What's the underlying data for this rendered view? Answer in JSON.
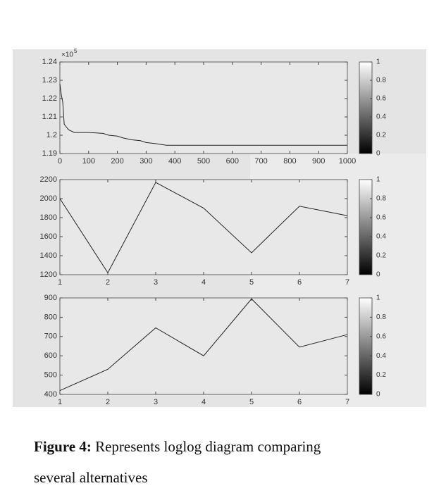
{
  "chart_data": [
    {
      "type": "line",
      "x": [
        0,
        5,
        10,
        15,
        20,
        30,
        50,
        100,
        150,
        170,
        200,
        220,
        250,
        280,
        300,
        330,
        370,
        400,
        500,
        600,
        700,
        800,
        900,
        1000
      ],
      "values": [
        122800,
        122200,
        121800,
        120600,
        120500,
        120300,
        120150,
        120150,
        120100,
        120000,
        119950,
        119850,
        119750,
        119700,
        119600,
        119550,
        119450,
        119450,
        119450,
        119450,
        119450,
        119450,
        119450,
        119450
      ],
      "xlim": [
        0,
        1000
      ],
      "ylim": [
        119000,
        124000
      ],
      "xticks": [
        0,
        100,
        200,
        300,
        400,
        500,
        600,
        700,
        800,
        900,
        1000
      ],
      "yticks": [
        {
          "value": 119000,
          "label": "1.19"
        },
        {
          "value": 120000,
          "label": "1.2"
        },
        {
          "value": 121000,
          "label": "1.21"
        },
        {
          "value": 122000,
          "label": "1.22"
        },
        {
          "value": 123000,
          "label": "1.23"
        },
        {
          "value": 124000,
          "label": "1.24"
        }
      ],
      "y_multiplier": {
        "base": "×10",
        "power": "5"
      },
      "color": "#222222",
      "colorbar": {
        "lim": [
          0,
          1
        ],
        "ticks": [
          0,
          0.2,
          0.4,
          0.6,
          0.8,
          1
        ]
      }
    },
    {
      "type": "line",
      "x": [
        1,
        2,
        3,
        4,
        5,
        6,
        7
      ],
      "values": [
        2000,
        1220,
        2170,
        1900,
        1430,
        1920,
        1820
      ],
      "xlim": [
        1,
        7
      ],
      "ylim": [
        1200,
        2200
      ],
      "xticks": [
        1,
        2,
        3,
        4,
        5,
        6,
        7
      ],
      "yticks": [
        1200,
        1400,
        1600,
        1800,
        2000,
        2200
      ],
      "color": "#222222",
      "colorbar": {
        "lim": [
          0,
          1
        ],
        "ticks": [
          0,
          0.2,
          0.4,
          0.6,
          0.8,
          1
        ]
      }
    },
    {
      "type": "line",
      "x": [
        1,
        2,
        3,
        4,
        5,
        6,
        7
      ],
      "values": [
        420,
        530,
        745,
        600,
        895,
        645,
        710
      ],
      "xlim": [
        1,
        7
      ],
      "ylim": [
        400,
        900
      ],
      "xticks": [
        1,
        2,
        3,
        4,
        5,
        6,
        7
      ],
      "yticks": [
        400,
        500,
        600,
        700,
        800,
        900
      ],
      "color": "#222222",
      "colorbar": {
        "lim": [
          0,
          1
        ],
        "ticks": [
          0,
          0.2,
          0.4,
          0.6,
          0.8,
          1
        ]
      }
    }
  ],
  "caption": {
    "label": "Figure 4:",
    "text": "Represents loglog diagram comparing several alternatives"
  }
}
